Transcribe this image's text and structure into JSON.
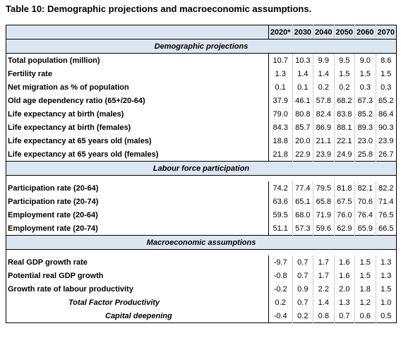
{
  "title": "Table 10: Demographic projections and macroeconomic assumptions.",
  "table": {
    "columns": [
      "2020*",
      "2030",
      "2040",
      "2050",
      "2060",
      "2070"
    ],
    "sections": [
      {
        "title": "Demographic projections",
        "rows": [
          {
            "label": "Total population (million)",
            "values": [
              "10.7",
              "10.3",
              "9.9",
              "9.5",
              "9.0",
              "8.6"
            ]
          },
          {
            "label": "Fertility rate",
            "values": [
              "1.3",
              "1.4",
              "1.4",
              "1.5",
              "1.5",
              "1.5"
            ]
          },
          {
            "label": "Net migration as % of population",
            "values": [
              "0.1",
              "0.1",
              "0.2",
              "0.2",
              "0.3",
              "0.3"
            ]
          },
          {
            "label": "Old age dependency ratio (65+/20-64)",
            "values": [
              "37.9",
              "46.1",
              "57.8",
              "68.2",
              "67.3",
              "65.2"
            ]
          },
          {
            "label": "Life expectancy at birth (males)",
            "values": [
              "79.0",
              "80.8",
              "82.4",
              "83.8",
              "85.2",
              "86.4"
            ]
          },
          {
            "label": "Life expectancy at birth (females)",
            "values": [
              "84.3",
              "85.7",
              "86.9",
              "88.1",
              "89.3",
              "90.3"
            ]
          },
          {
            "label": "Life expectancy at 65 years old (males)",
            "values": [
              "18.8",
              "20.0",
              "21.1",
              "22.1",
              "23.0",
              "23.9"
            ]
          },
          {
            "label": "Life expectancy at 65 years old (females)",
            "values": [
              "21.8",
              "22.9",
              "23.9",
              "24.9",
              "25.8",
              "26.7"
            ]
          }
        ]
      },
      {
        "title": "Labour force participation",
        "rows": [
          {
            "label": "Participation rate (20-64)",
            "values": [
              "74.2",
              "77.4",
              "79.5",
              "81.8",
              "82.1",
              "82.2"
            ]
          },
          {
            "label": "Participation rate (20-74)",
            "values": [
              "63.6",
              "65.1",
              "65.8",
              "67.5",
              "70.6",
              "71.4"
            ]
          },
          {
            "label": "Employment rate (20-64)",
            "values": [
              "59.5",
              "68.0",
              "71.9",
              "76.0",
              "76.4",
              "76.5"
            ]
          },
          {
            "label": "Employment rate (20-74)",
            "values": [
              "51.1",
              "57.3",
              "59.6",
              "62.9",
              "65.9",
              "66.5"
            ]
          }
        ]
      },
      {
        "title": "Macroeconomic assumptions",
        "rows": [
          {
            "label": "Real GDP growth rate",
            "values": [
              "-9.7",
              "0.7",
              "1.7",
              "1.6",
              "1.5",
              "1.3"
            ]
          },
          {
            "label": "Potential real GDP growth",
            "values": [
              "-0.8",
              "0.7",
              "1.7",
              "1.6",
              "1.5",
              "1.3"
            ]
          },
          {
            "label": "Growth rate of labour productivity",
            "values": [
              "-0.2",
              "0.9",
              "2.2",
              "2.0",
              "1.8",
              "1.5"
            ]
          },
          {
            "label": "Total Factor Productivity",
            "values": [
              "0.2",
              "0.7",
              "1.4",
              "1.3",
              "1.2",
              "1.0"
            ]
          },
          {
            "label": "Capital deepening",
            "values": [
              "-0.4",
              "0.2",
              "0.8",
              "0.7",
              "0.6",
              "0.5"
            ]
          }
        ]
      }
    ]
  }
}
